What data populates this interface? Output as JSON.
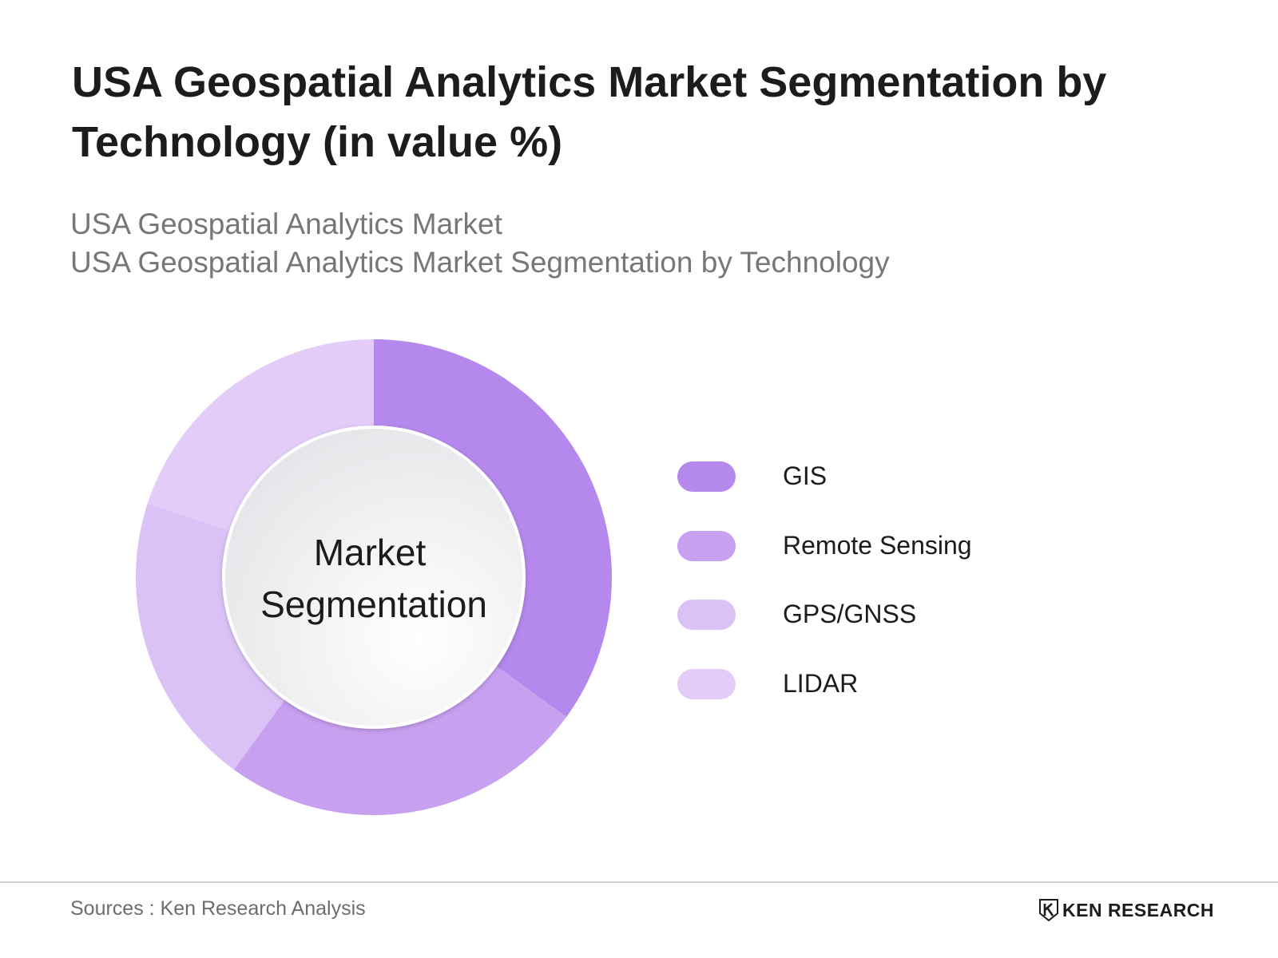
{
  "title": "USA Geospatial Analytics Market Segmentation by Technology (in value %)",
  "subtitle": {
    "line1": "USA Geospatial Analytics Market",
    "line2": "USA Geospatial Analytics Market Segmentation by Technology"
  },
  "chart_data": {
    "type": "pie",
    "variant": "donut",
    "center_label": [
      "Market",
      "Segmentation"
    ],
    "categories": [
      "GIS",
      "Remote Sensing",
      "GPS/GNSS",
      "LIDAR"
    ],
    "values": [
      35,
      25,
      20,
      20
    ],
    "colors": [
      "#b488ec",
      "#c8a0f0",
      "#dac2f6",
      "#e3cdf8"
    ],
    "legend_position": "right"
  },
  "footer": {
    "sources": "Sources : Ken Research Analysis",
    "brand": "KEN RESEARCH",
    "brand_logo": "ken-research-logo"
  }
}
